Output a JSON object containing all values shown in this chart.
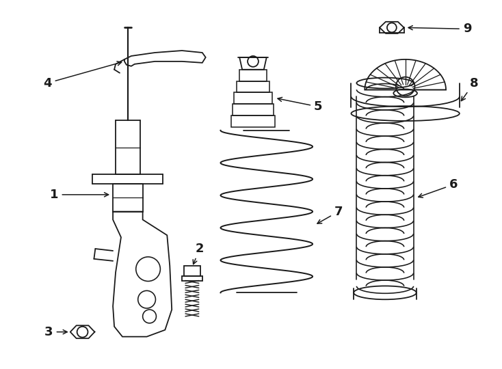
{
  "bg_color": "#ffffff",
  "line_color": "#1a1a1a",
  "lw": 1.3,
  "figsize": [
    7.34,
    5.4
  ],
  "dpi": 100,
  "label_fs": 13
}
